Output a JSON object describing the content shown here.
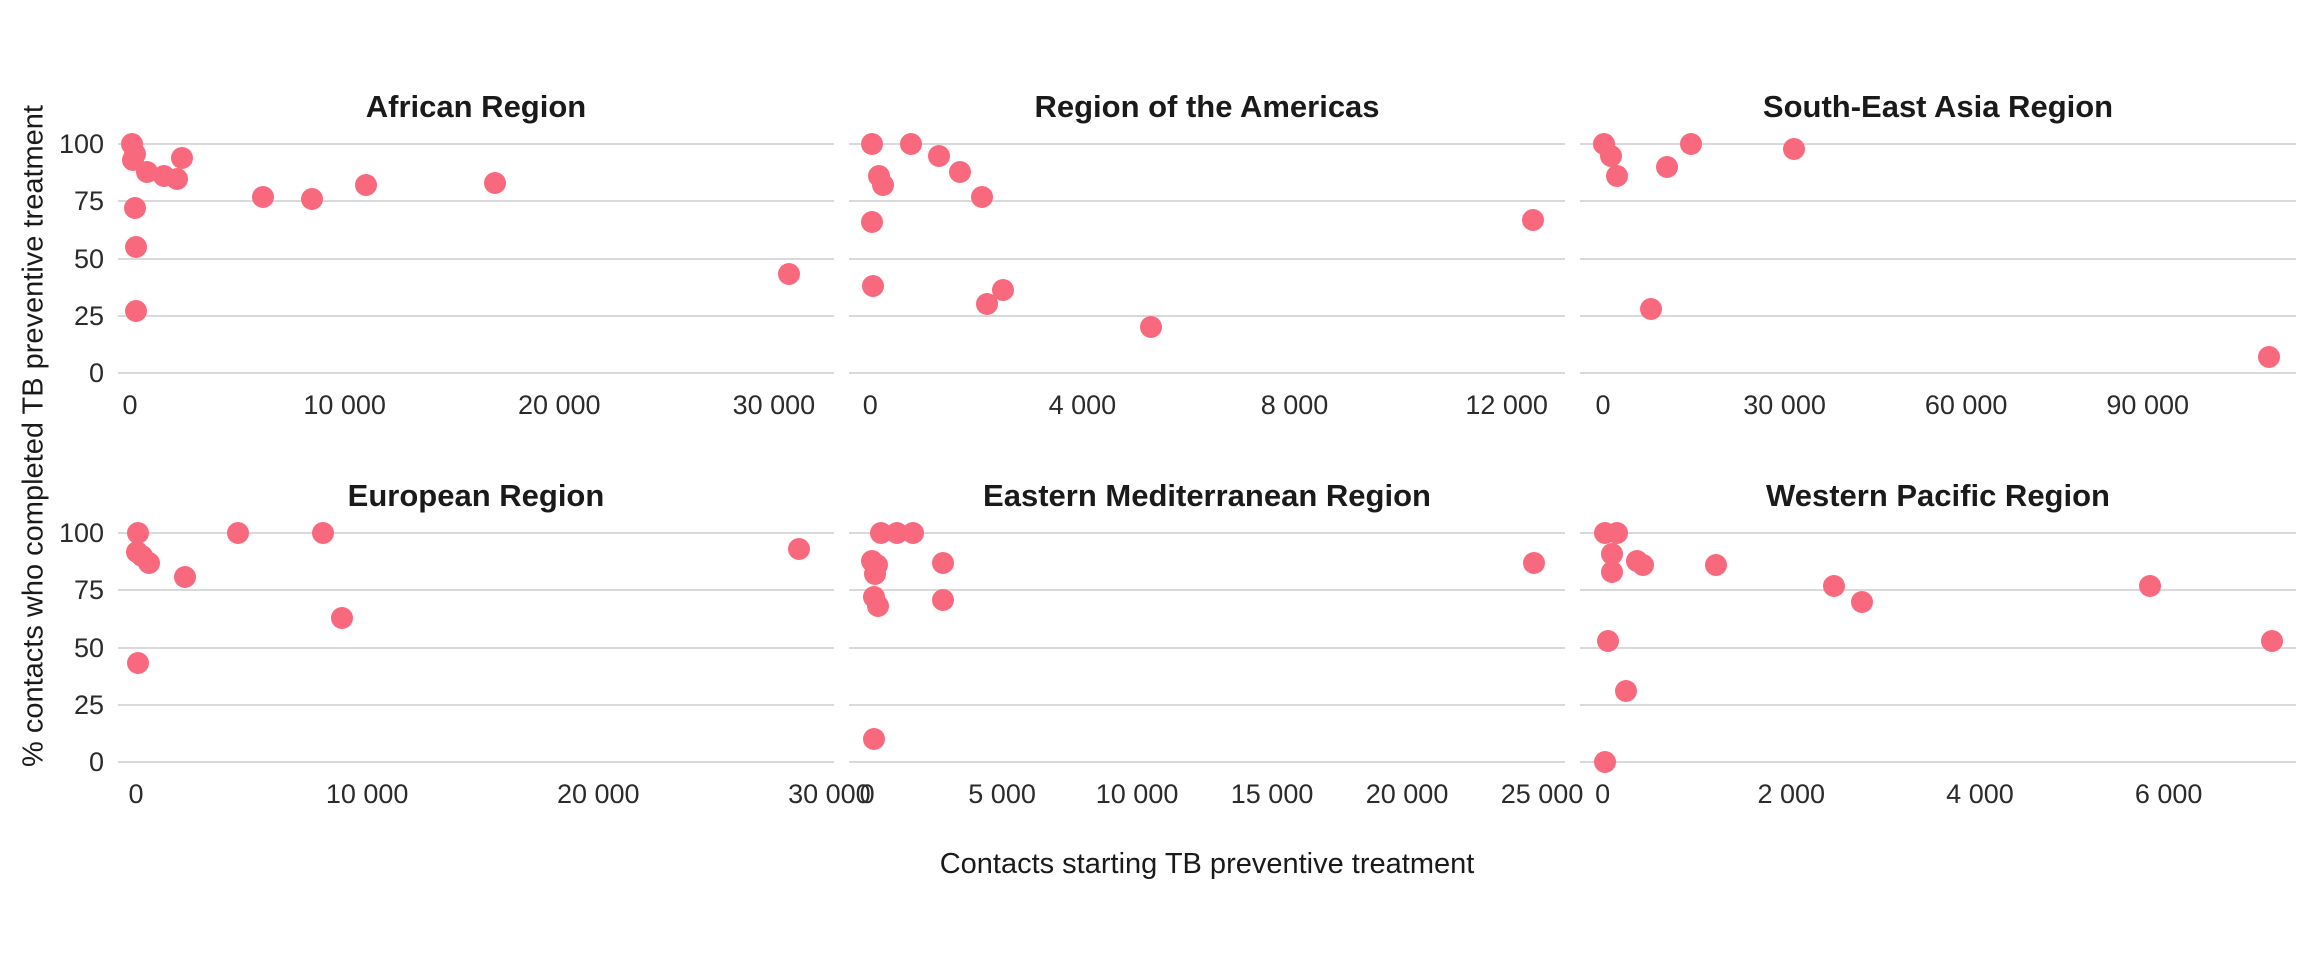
{
  "chart": {
    "dot_color": "#F9697E",
    "gridline_color": "#D9D9D9",
    "text_color": "#1A1A1A",
    "background_color": "#FFFFFF"
  },
  "chart_data": {
    "type": "scatter",
    "title": "",
    "xlabel": "Contacts starting TB preventive treatment",
    "ylabel": "% contacts who completed TB preventive treatment",
    "grid": "horizontal-major-only",
    "legend": "none",
    "y_ticks": [
      0,
      25,
      50,
      75,
      100
    ],
    "y_tick_labels": [
      "0",
      "25",
      "50",
      "75",
      "100"
    ],
    "ylim": [
      -5,
      105
    ],
    "facets": [
      {
        "title": "African Region",
        "row": 0,
        "col": 0,
        "x_domain": [
          -560,
          32800
        ],
        "x_ticks": [
          0,
          10000,
          20000,
          30000
        ],
        "x_tick_labels": [
          "0",
          "10 000",
          "20 000",
          "30 000"
        ],
        "points": [
          [
            100,
            100
          ],
          [
            250,
            96
          ],
          [
            150,
            93
          ],
          [
            800,
            88
          ],
          [
            1600,
            86
          ],
          [
            2200,
            85
          ],
          [
            2400,
            94
          ],
          [
            250,
            72
          ],
          [
            300,
            55
          ],
          [
            300,
            27
          ],
          [
            6200,
            77
          ],
          [
            8500,
            76
          ],
          [
            11000,
            82
          ],
          [
            17000,
            83
          ],
          [
            30700,
            43
          ]
        ]
      },
      {
        "title": "Region of the Americas",
        "row": 0,
        "col": 1,
        "x_domain": [
          -400,
          13100
        ],
        "x_ticks": [
          0,
          4000,
          8000,
          12000
        ],
        "x_tick_labels": [
          "0",
          "4 000",
          "8 000",
          "12 000"
        ],
        "points": [
          [
            30,
            100
          ],
          [
            770,
            100
          ],
          [
            1300,
            95
          ],
          [
            1700,
            88
          ],
          [
            2100,
            77
          ],
          [
            160,
            86
          ],
          [
            240,
            82
          ],
          [
            30,
            66
          ],
          [
            50,
            38
          ],
          [
            2500,
            36
          ],
          [
            2200,
            30
          ],
          [
            5300,
            20
          ],
          [
            12500,
            67
          ]
        ]
      },
      {
        "title": "South-East Asia Region",
        "row": 0,
        "col": 2,
        "x_domain": [
          -3800,
          114500
        ],
        "x_ticks": [
          0,
          30000,
          60000,
          90000
        ],
        "x_tick_labels": [
          "0",
          "30 000",
          "60 000",
          "90 000"
        ],
        "points": [
          [
            100,
            100
          ],
          [
            1300,
            95
          ],
          [
            2300,
            86
          ],
          [
            10500,
            90
          ],
          [
            14500,
            100
          ],
          [
            31500,
            98
          ],
          [
            8000,
            28
          ],
          [
            110000,
            7
          ]
        ]
      },
      {
        "title": "European Region",
        "row": 1,
        "col": 0,
        "x_domain": [
          -780,
          30200
        ],
        "x_ticks": [
          0,
          10000,
          20000,
          30000
        ],
        "x_tick_labels": [
          "0",
          "10 000",
          "20 000",
          "30 000"
        ],
        "points": [
          [
            100,
            100
          ],
          [
            50,
            92
          ],
          [
            250,
            90
          ],
          [
            550,
            87
          ],
          [
            2100,
            81
          ],
          [
            4400,
            100
          ],
          [
            8100,
            100
          ],
          [
            8900,
            63
          ],
          [
            100,
            43
          ],
          [
            28700,
            93
          ]
        ]
      },
      {
        "title": "Eastern Mediterranean Region",
        "row": 1,
        "col": 1,
        "x_domain": [
          -670,
          25850
        ],
        "x_ticks": [
          0,
          5000,
          10000,
          15000,
          20000,
          25000
        ],
        "x_tick_labels": [
          "0",
          "5 000",
          "10 000",
          "15 000",
          "20 000",
          "25 000"
        ],
        "points": [
          [
            500,
            100
          ],
          [
            1100,
            100
          ],
          [
            1700,
            100
          ],
          [
            200,
            88
          ],
          [
            350,
            86
          ],
          [
            300,
            82
          ],
          [
            2800,
            87
          ],
          [
            250,
            72
          ],
          [
            400,
            68
          ],
          [
            2800,
            71
          ],
          [
            250,
            10
          ],
          [
            24700,
            87
          ]
        ]
      },
      {
        "title": "Western Pacific Region",
        "row": 1,
        "col": 2,
        "x_domain": [
          -240,
          7350
        ],
        "x_ticks": [
          0,
          2000,
          4000,
          6000
        ],
        "x_tick_labels": [
          "0",
          "2 000",
          "4 000",
          "6 000"
        ],
        "points": [
          [
            30,
            100
          ],
          [
            150,
            100
          ],
          [
            100,
            91
          ],
          [
            100,
            83
          ],
          [
            360,
            88
          ],
          [
            430,
            86
          ],
          [
            1200,
            86
          ],
          [
            2450,
            77
          ],
          [
            2750,
            70
          ],
          [
            60,
            53
          ],
          [
            250,
            31
          ],
          [
            30,
            0
          ],
          [
            5800,
            77
          ],
          [
            7100,
            53
          ]
        ]
      }
    ]
  }
}
